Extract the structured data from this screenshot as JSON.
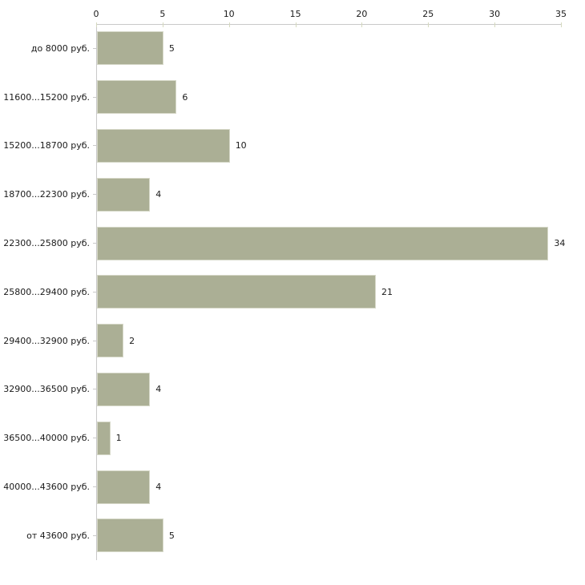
{
  "page": {
    "background_color": "#ffffff",
    "text_color": "#1a1a1a"
  },
  "chart_data": {
    "type": "bar",
    "orientation": "horizontal",
    "title": "",
    "xlabel": "",
    "ylabel": "",
    "categories": [
      "до 8000 руб.",
      "11600...15200 руб.",
      "15200...18700 руб.",
      "18700...22300 руб.",
      "22300...25800 руб.",
      "25800...29400 руб.",
      "29400...32900 руб.",
      "32900...36500 руб.",
      "36500...40000 руб.",
      "40000...43600 руб.",
      "от 43600 руб."
    ],
    "values": [
      5,
      6,
      10,
      4,
      34,
      21,
      2,
      4,
      1,
      4,
      5
    ],
    "x_ticks": [
      0,
      5,
      10,
      15,
      20,
      25,
      30,
      35
    ],
    "xlim": [
      0,
      35
    ],
    "axis_position": "top",
    "grid": false,
    "legend": null,
    "value_labels_shown": true,
    "colors": {
      "bar_fill": "#abaf95",
      "bar_border": "#d6d8c8",
      "axis_line": "#c9c9c9",
      "tick_mark": "#d5d9bf",
      "label_text": "#1a1a1a"
    }
  }
}
